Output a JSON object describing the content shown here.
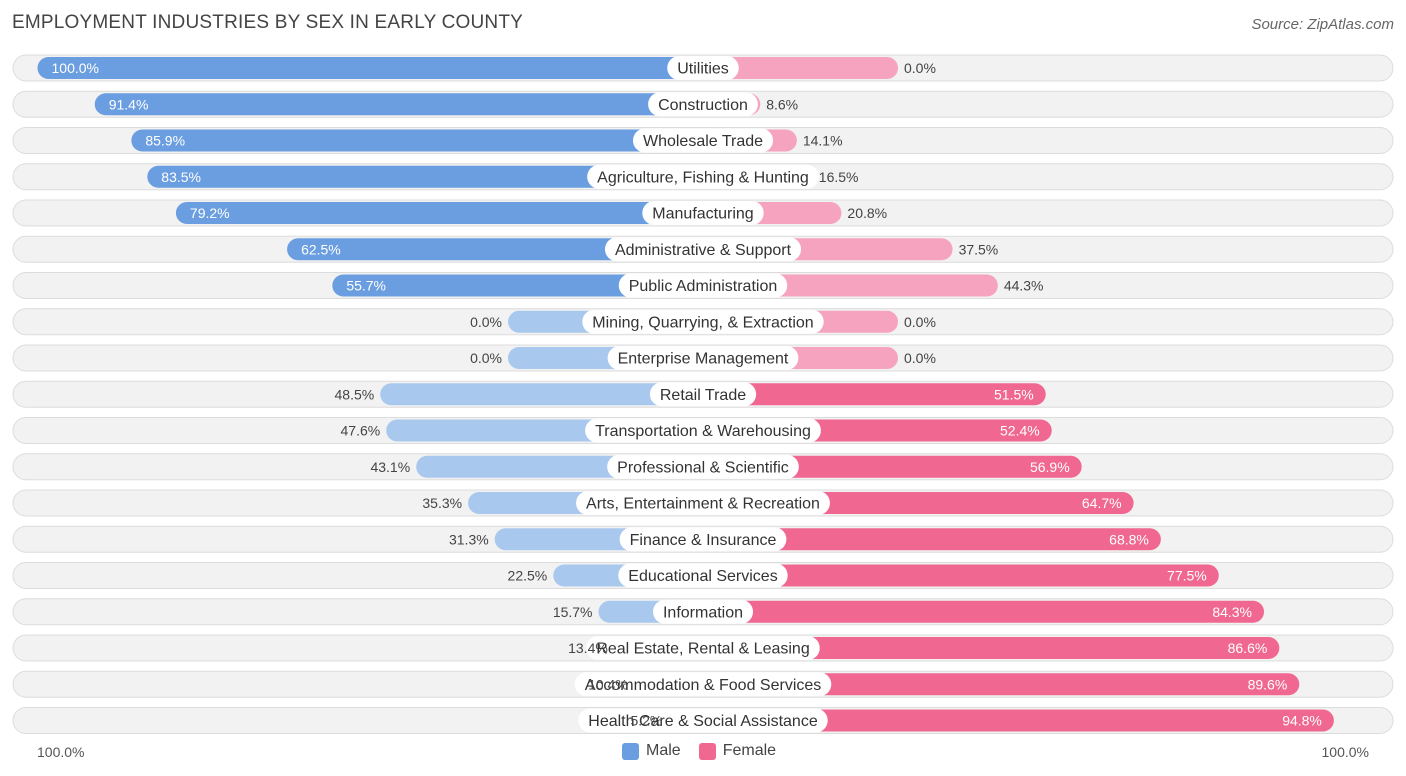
{
  "title": "EMPLOYMENT INDUSTRIES BY SEX IN EARLY COUNTY",
  "source": "Source: ZipAtlas.com",
  "colors": {
    "male": "#6a9ee0",
    "male_light": "#a9c8ee",
    "female": "#f06892",
    "female_light": "#f5a3bf",
    "row_bg": "#f2f2f2",
    "row_border": "#dcdcdc"
  },
  "legend": {
    "male_label": "Male",
    "female_label": "Female"
  },
  "axis": {
    "left_label": "100.0%",
    "right_label": "100.0%"
  },
  "chart_data": {
    "type": "bar",
    "orientation": "horizontal-diverging",
    "title": "EMPLOYMENT INDUSTRIES BY SEX IN EARLY COUNTY",
    "xlim": [
      -100,
      100
    ],
    "categories": [
      "Utilities",
      "Construction",
      "Wholesale Trade",
      "Agriculture, Fishing & Hunting",
      "Manufacturing",
      "Administrative & Support",
      "Public Administration",
      "Mining, Quarrying, & Extraction",
      "Enterprise Management",
      "Retail Trade",
      "Transportation & Warehousing",
      "Professional & Scientific",
      "Arts, Entertainment & Recreation",
      "Finance & Insurance",
      "Educational Services",
      "Information",
      "Real Estate, Rental & Leasing",
      "Accommodation & Food Services",
      "Health Care & Social Assistance"
    ],
    "series": [
      {
        "name": "Male",
        "values": [
          100.0,
          91.4,
          85.9,
          83.5,
          79.2,
          62.5,
          55.7,
          0.0,
          0.0,
          48.5,
          47.6,
          43.1,
          35.3,
          31.3,
          22.5,
          15.7,
          13.4,
          10.4,
          5.2
        ]
      },
      {
        "name": "Female",
        "values": [
          0.0,
          8.6,
          14.1,
          16.5,
          20.8,
          37.5,
          44.3,
          0.0,
          0.0,
          51.5,
          52.4,
          56.9,
          64.7,
          68.8,
          77.5,
          84.3,
          86.6,
          89.6,
          94.8
        ]
      }
    ],
    "male_labels": [
      "100.0%",
      "91.4%",
      "85.9%",
      "83.5%",
      "79.2%",
      "62.5%",
      "55.7%",
      "0.0%",
      "0.0%",
      "48.5%",
      "47.6%",
      "43.1%",
      "35.3%",
      "31.3%",
      "22.5%",
      "15.7%",
      "13.4%",
      "10.4%",
      "5.2%"
    ],
    "female_labels": [
      "0.0%",
      "8.6%",
      "14.1%",
      "16.5%",
      "20.8%",
      "37.5%",
      "44.3%",
      "0.0%",
      "0.0%",
      "51.5%",
      "52.4%",
      "56.9%",
      "64.7%",
      "68.8%",
      "77.5%",
      "84.3%",
      "86.6%",
      "89.6%",
      "94.8%"
    ]
  }
}
